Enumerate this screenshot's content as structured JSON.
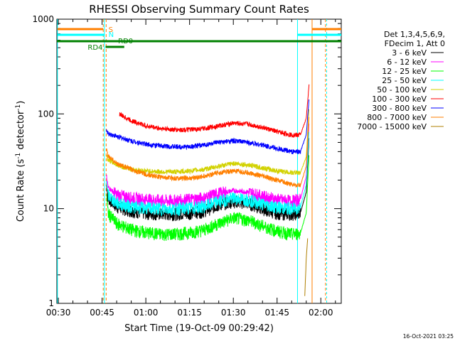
{
  "chart_data": {
    "type": "line",
    "title": "RHESSI Observing Summary Count Rates",
    "xlabel": "Start Time (19-Oct-09 00:29:42)",
    "ylabel_main": "Count Rate (s",
    "ylabel_sup1": "-1",
    "ylabel_mid": " detector",
    "ylabel_sup2": "-1",
    "ylabel_end": ")",
    "yscale": "log",
    "ylim": [
      1,
      1000
    ],
    "xlim": [
      "00:29",
      "02:07"
    ],
    "x_ticks": [
      {
        "t": 30,
        "label": "00:30"
      },
      {
        "t": 45,
        "label": "00:45"
      },
      {
        "t": 60,
        "label": "01:00"
      },
      {
        "t": 75,
        "label": "01:15"
      },
      {
        "t": 90,
        "label": "01:30"
      },
      {
        "t": 105,
        "label": "01:45"
      },
      {
        "t": 120,
        "label": "02:00"
      }
    ],
    "y_ticks": [
      {
        "v": 1,
        "label": "1"
      },
      {
        "v": 10,
        "label": "10"
      },
      {
        "v": 100,
        "label": "100"
      },
      {
        "v": 1000,
        "label": "1000"
      }
    ],
    "legend_title_1": "Det 1,3,4,5,6,9,",
    "legend_title_2": "FDecim 1, Att 0",
    "legend_placement": "right",
    "series": [
      {
        "name": "3 - 6 keV",
        "color": "#000000",
        "x": [
          46.5,
          47,
          50,
          55,
          60,
          65,
          70,
          75,
          80,
          85,
          90,
          95,
          100,
          105,
          110,
          113,
          115,
          116
        ],
        "values": [
          18,
          13,
          10.5,
          9.5,
          9,
          8.8,
          8.8,
          9,
          9.5,
          11,
          12,
          11.5,
          10,
          9,
          8.8,
          9,
          15,
          60
        ]
      },
      {
        "name": "6 - 12 keV",
        "color": "#ff00ff",
        "x": [
          46.5,
          47,
          50,
          55,
          60,
          65,
          70,
          75,
          80,
          85,
          90,
          95,
          100,
          105,
          110,
          113,
          115,
          116
        ],
        "values": [
          22,
          17,
          14,
          13,
          12.5,
          12.2,
          12.2,
          12.5,
          13,
          14.5,
          15.5,
          15,
          13.5,
          12.5,
          12,
          12.5,
          22,
          85
        ]
      },
      {
        "name": "12 - 25 keV",
        "color": "#00ff00",
        "x": [
          46.5,
          47,
          50,
          55,
          60,
          65,
          70,
          75,
          80,
          85,
          90,
          95,
          100,
          105,
          110,
          113,
          115,
          116
        ],
        "values": [
          15,
          9,
          7,
          6,
          5.6,
          5.4,
          5.4,
          5.6,
          6,
          7,
          8,
          7.6,
          6.6,
          5.8,
          5.4,
          5.5,
          9,
          40
        ]
      },
      {
        "name": "25 - 50 keV",
        "color": "#00ffff",
        "x": [
          46.5,
          47,
          50,
          55,
          60,
          65,
          70,
          75,
          80,
          85,
          90,
          95,
          100,
          105,
          110,
          113,
          115,
          116
        ],
        "values": [
          20,
          14,
          11.5,
          10.5,
          10.2,
          10,
          10,
          10.2,
          10.6,
          12,
          13,
          12.5,
          11.2,
          10.4,
          10,
          10.3,
          18,
          70
        ]
      },
      {
        "name": "50 - 100 keV",
        "color": "#d2d200",
        "x": [
          46.5,
          47,
          50,
          55,
          60,
          65,
          70,
          75,
          80,
          85,
          90,
          95,
          100,
          105,
          110,
          113,
          115,
          116
        ],
        "values": [
          36,
          33,
          29,
          26,
          25,
          24.5,
          24.5,
          25,
          26,
          28,
          30,
          29,
          27,
          25,
          24,
          24,
          35,
          120
        ]
      },
      {
        "name": "100 - 300 keV",
        "color": "#ff0000",
        "x": [
          51,
          52,
          55,
          60,
          65,
          70,
          75,
          80,
          85,
          90,
          95,
          100,
          105,
          110,
          113,
          115,
          116
        ],
        "values": [
          100,
          95,
          85,
          75,
          70,
          68,
          68,
          70,
          75,
          80,
          78,
          72,
          65,
          60,
          60,
          90,
          210
        ]
      },
      {
        "name": "300 - 800 keV",
        "color": "#0000ff",
        "x": [
          46.5,
          47,
          50,
          55,
          60,
          65,
          70,
          75,
          80,
          85,
          90,
          95,
          100,
          105,
          110,
          113,
          115,
          116
        ],
        "values": [
          68,
          62,
          58,
          52,
          48,
          46,
          45,
          45,
          47,
          50,
          52,
          50,
          47,
          43,
          40,
          40,
          60,
          150
        ]
      },
      {
        "name": "800 - 7000 keV",
        "color": "#ff7f00",
        "x": [
          46.5,
          47,
          50,
          55,
          60,
          65,
          70,
          75,
          80,
          85,
          90,
          95,
          100,
          105,
          110,
          113,
          115,
          116
        ],
        "values": [
          42,
          36,
          30,
          26,
          23,
          21.5,
          21,
          21,
          22,
          24,
          25,
          24,
          22,
          20,
          18,
          17.5,
          28,
          100
        ]
      },
      {
        "name": "7000 - 15000 keV",
        "color": "#af7f00",
        "x": [
          114.5,
          115,
          115.5
        ],
        "values": [
          1.2,
          3,
          5
        ]
      }
    ],
    "bars": [
      {
        "label": "S",
        "color": "#ff7f00"
      },
      {
        "label": "N",
        "color": "#00ffff"
      },
      {
        "label": "RD0",
        "color": "#008000"
      },
      {
        "label": "RD4",
        "color": "#008000"
      }
    ]
  },
  "footer": {
    "date_stamp": "16-Oct-2021 03:25"
  }
}
